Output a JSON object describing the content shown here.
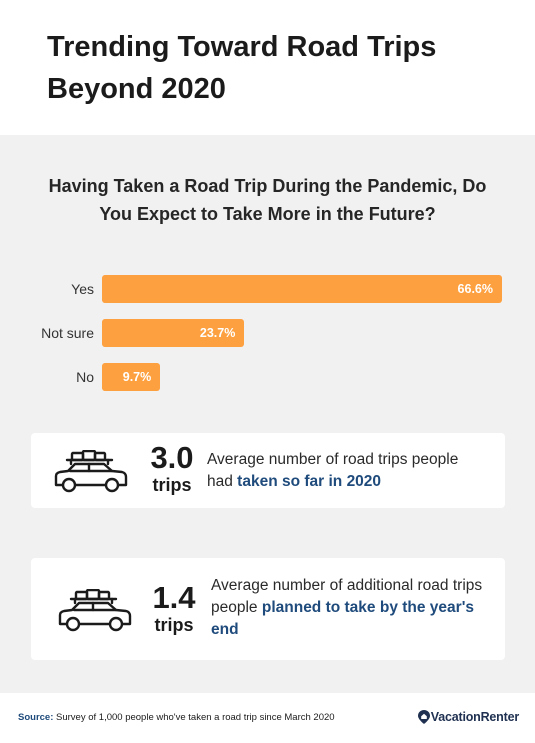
{
  "header": {
    "title": "Trending Toward Road Trips Beyond 2020"
  },
  "colors": {
    "bar": "#fda03f",
    "highlight": "#1f4b7c",
    "panel": "#f1f1f1"
  },
  "chart_data": {
    "type": "bar",
    "orientation": "horizontal",
    "title": "Having Taken a Road Trip During the Pandemic, Do You Expect to Take More in the Future?",
    "categories": [
      "Yes",
      "Not sure",
      "No"
    ],
    "values": [
      66.6,
      23.7,
      9.7
    ],
    "value_labels": [
      "66.6%",
      "23.7%",
      "9.7%"
    ],
    "unit": "%",
    "xlim": [
      0,
      66.6
    ],
    "grid": false,
    "legend": "none"
  },
  "stats": [
    {
      "icon": "car-with-luggage-icon",
      "value": "3.0",
      "unit": "trips",
      "text_plain": "Average number of road trips people had ",
      "text_highlight": "taken so far in 2020"
    },
    {
      "icon": "car-with-luggage-icon",
      "value": "1.4",
      "unit": "trips",
      "text_plain": "Average number of additional road trips people ",
      "text_highlight": "planned to take by the year's end"
    }
  ],
  "footer": {
    "source_label": "Source:",
    "source_text": " Survey of 1,000 people who've taken a road trip since March 2020",
    "brand": "VacationRenter",
    "brand_icon": "map-pin-icon"
  }
}
